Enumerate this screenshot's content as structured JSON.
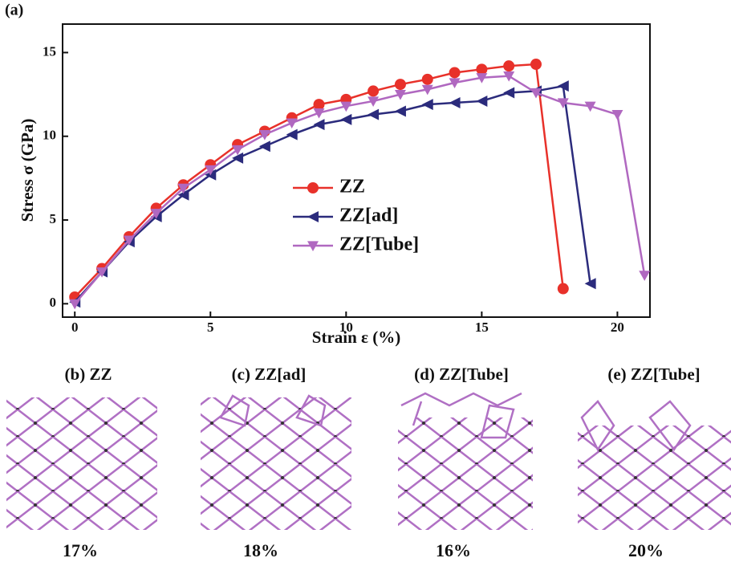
{
  "chart_data": {
    "type": "line",
    "panel_label": "(a)",
    "x_label": "Strain ε (%)",
    "y_label": "Stress σ (GPa)",
    "xlim": [
      -0.45,
      21.2
    ],
    "xticks": [
      0,
      5,
      10,
      15,
      20
    ],
    "ylim": [
      -0.8,
      16.7
    ],
    "yticks": [
      0,
      5,
      10,
      15
    ],
    "legend": "center",
    "series": [
      {
        "name": "ZZ",
        "color": "#e8312a",
        "marker": "circle",
        "x": [
          0,
          1,
          2,
          3,
          4,
          5,
          6,
          7,
          8,
          9,
          10,
          11,
          12,
          13,
          14,
          15,
          16,
          17,
          18
        ],
        "values": [
          0.4,
          2.1,
          4.0,
          5.7,
          7.1,
          8.3,
          9.5,
          10.3,
          11.1,
          11.9,
          12.2,
          12.7,
          13.1,
          13.4,
          13.8,
          14.0,
          14.2,
          14.3,
          0.9
        ]
      },
      {
        "name": "ZZ[ad]",
        "color": "#2b2b7c",
        "marker": "triangle-left",
        "x": [
          0,
          1,
          2,
          3,
          4,
          5,
          6,
          7,
          8,
          9,
          10,
          11,
          12,
          13,
          14,
          15,
          16,
          17,
          18,
          19
        ],
        "values": [
          0.1,
          1.9,
          3.7,
          5.2,
          6.5,
          7.7,
          8.7,
          9.4,
          10.1,
          10.7,
          11.0,
          11.3,
          11.5,
          11.9,
          12.0,
          12.1,
          12.6,
          12.7,
          13.0,
          1.2
        ]
      },
      {
        "name": "ZZ[Tube]",
        "color": "#b068c0",
        "marker": "triangle-down",
        "x": [
          0,
          1,
          2,
          3,
          4,
          5,
          6,
          7,
          8,
          9,
          10,
          11,
          12,
          13,
          14,
          15,
          16,
          17,
          18,
          19,
          20,
          21
        ],
        "values": [
          0.0,
          1.9,
          3.8,
          5.4,
          6.9,
          8.0,
          9.2,
          10.1,
          10.8,
          11.4,
          11.8,
          12.1,
          12.5,
          12.8,
          13.2,
          13.5,
          13.6,
          12.6,
          12.0,
          11.8,
          11.3,
          1.7
        ]
      }
    ]
  },
  "panels": [
    {
      "label": "(b) ZZ",
      "strain": "17%"
    },
    {
      "label": "(c) ZZ[ad]",
      "strain": "18%"
    },
    {
      "label": "(d) ZZ[Tube]",
      "strain": "16%"
    },
    {
      "label": "(e) ZZ[Tube]",
      "strain": "20%"
    }
  ]
}
